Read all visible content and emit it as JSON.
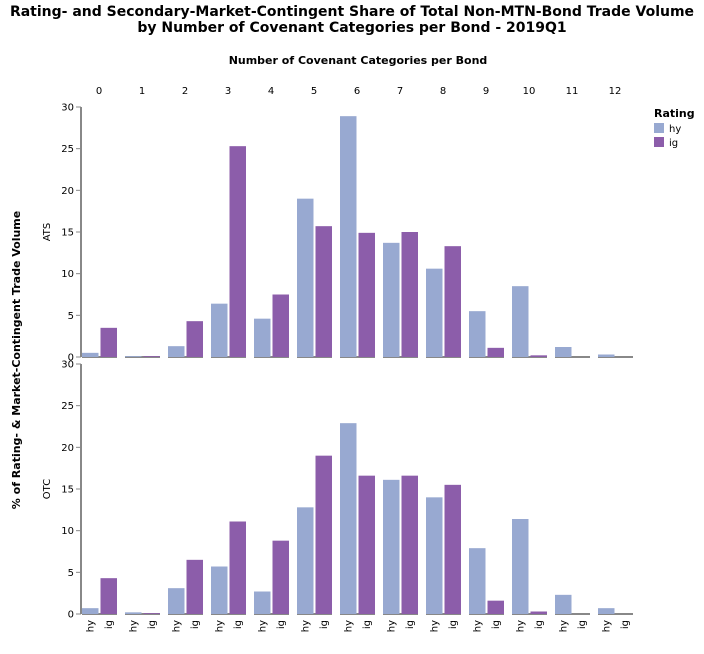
{
  "title_line1": "Rating- and Secondary-Market-Contingent Share of Total Non-MTN-Bond Trade Volume",
  "title_line2": "by Number of Covenant Categories per Bond - 2019Q1",
  "colors": {
    "hy": "#98a9d1",
    "ig": "#8c5daa",
    "axis": "#888888"
  },
  "chart_data": {
    "type": "bar",
    "column_header": "Number of Covenant Categories per Bond",
    "ylabel": "% of Rating- & Market-Contingent Trade Volume",
    "ylim": [
      0,
      30
    ],
    "yticks": [
      0,
      5,
      10,
      15,
      20,
      25,
      30
    ],
    "categories": [
      "0",
      "1",
      "2",
      "3",
      "4",
      "5",
      "6",
      "7",
      "8",
      "9",
      "10",
      "11",
      "12"
    ],
    "series_keys": [
      "hy",
      "ig"
    ],
    "legend": {
      "title": "Rating",
      "position": "top-right",
      "items": [
        "hy",
        "ig"
      ]
    },
    "rows": [
      {
        "label": "ATS",
        "hy": [
          0.5,
          0.1,
          1.3,
          6.4,
          4.6,
          19.0,
          28.9,
          13.7,
          10.6,
          5.5,
          8.5,
          1.2,
          0.3
        ],
        "ig": [
          3.5,
          0.1,
          4.3,
          25.3,
          7.5,
          15.7,
          14.9,
          15.0,
          13.3,
          1.1,
          0.2,
          0.0,
          0.0
        ]
      },
      {
        "label": "OTC",
        "hy": [
          0.7,
          0.2,
          3.1,
          5.7,
          2.7,
          12.8,
          22.9,
          16.1,
          14.0,
          7.9,
          11.4,
          2.3,
          0.7
        ],
        "ig": [
          4.3,
          0.1,
          6.5,
          11.1,
          8.8,
          19.0,
          16.6,
          16.6,
          15.5,
          1.6,
          0.3,
          0.0,
          0.0
        ]
      }
    ]
  }
}
